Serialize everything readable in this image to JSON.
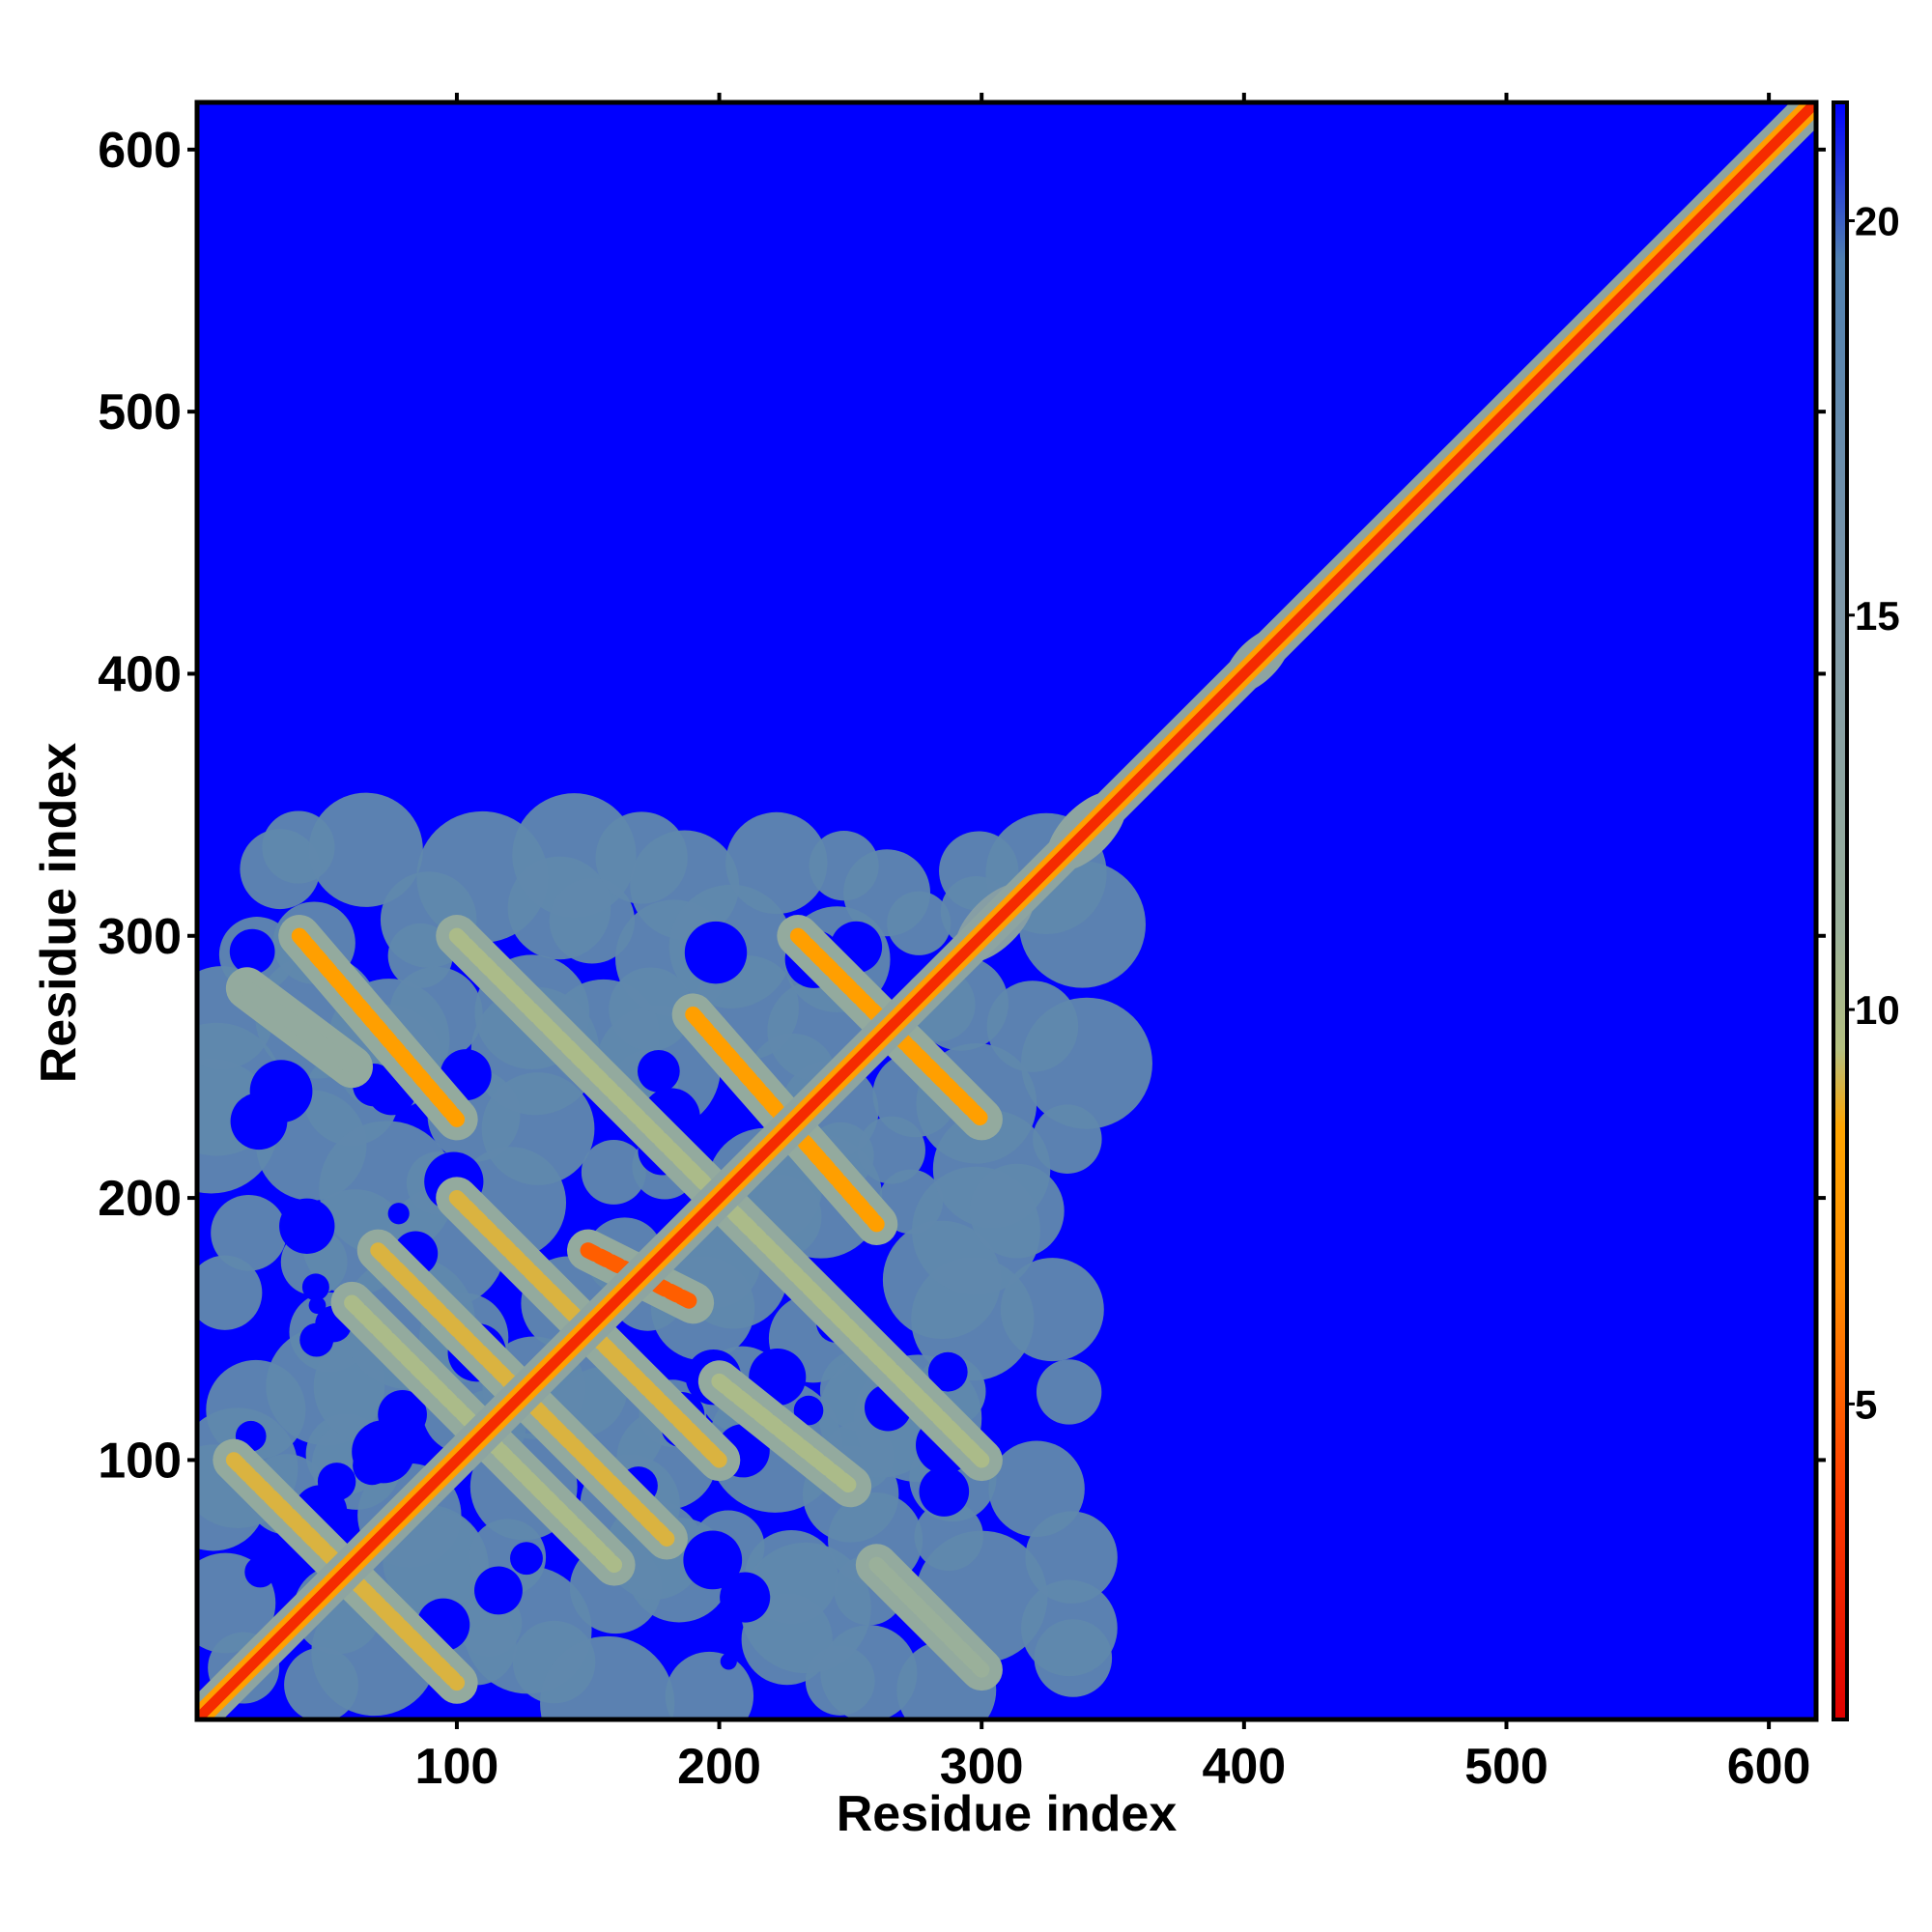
{
  "chart_data": {
    "type": "heatmap",
    "title": "",
    "xlabel": "Residue index",
    "ylabel": "Residue index",
    "xlim": [
      1,
      618
    ],
    "ylim": [
      1,
      618
    ],
    "x_ticks": [
      100,
      200,
      300,
      400,
      500,
      600
    ],
    "y_ticks": [
      100,
      200,
      300,
      400,
      500,
      600
    ],
    "colorbar": {
      "range": [
        1,
        21.5
      ],
      "ticks": [
        5,
        10,
        15,
        20
      ],
      "stops": [
        {
          "value": 1,
          "color": "#e00000"
        },
        {
          "value": 4,
          "color": "#ff4000"
        },
        {
          "value": 6.5,
          "color": "#ff8c00"
        },
        {
          "value": 8.5,
          "color": "#ffa500"
        },
        {
          "value": 9.5,
          "color": "#b4c080"
        },
        {
          "value": 11,
          "color": "#9ab09a"
        },
        {
          "value": 15,
          "color": "#7f98a8"
        },
        {
          "value": 19.5,
          "color": "#5080b0"
        },
        {
          "value": 21.5,
          "color": "#0000ff"
        }
      ]
    },
    "background_value": 21.5,
    "domain_region": {
      "x": [
        1,
        320
      ],
      "y": [
        1,
        320
      ]
    },
    "diagonal": {
      "from": 1,
      "to": 618,
      "value": 3
    },
    "contact_bands": [
      {
        "from": [
          15,
          100
        ],
        "to": [
          100,
          15
        ],
        "value": 9
      },
      {
        "from": [
          40,
          300
        ],
        "to": [
          100,
          230
        ],
        "value": 8
      },
      {
        "from": [
          100,
          300
        ],
        "to": [
          300,
          100
        ],
        "value": 10
      },
      {
        "from": [
          230,
          300
        ],
        "to": [
          300,
          230
        ],
        "value": 8
      },
      {
        "from": [
          190,
          270
        ],
        "to": [
          260,
          190
        ],
        "value": 8
      },
      {
        "from": [
          70,
          180
        ],
        "to": [
          180,
          70
        ],
        "value": 9
      },
      {
        "from": [
          100,
          200
        ],
        "to": [
          200,
          100
        ],
        "value": 9
      },
      {
        "from": [
          60,
          160
        ],
        "to": [
          160,
          60
        ],
        "value": 10
      },
      {
        "from": [
          150,
          180
        ],
        "to": [
          190,
          160
        ],
        "value": 5
      },
      {
        "from": [
          20,
          280
        ],
        "to": [
          60,
          250
        ],
        "value": 12
      },
      {
        "from": [
          260,
          60
        ],
        "to": [
          300,
          20
        ],
        "value": 11
      },
      {
        "from": [
          200,
          130
        ],
        "to": [
          250,
          90
        ],
        "value": 10
      }
    ],
    "diagonal_blobs": [
      {
        "at": 340,
        "radius": 12,
        "value": 13
      },
      {
        "at": 405,
        "radius": 10,
        "value": 13
      },
      {
        "at": 455,
        "radius": 4,
        "value": 11
      },
      {
        "at": 305,
        "radius": 12,
        "value": 14
      }
    ]
  }
}
